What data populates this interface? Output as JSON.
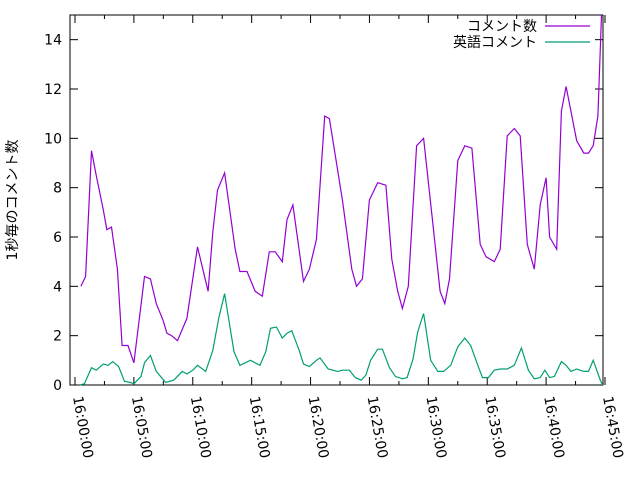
{
  "chart_data": {
    "type": "line",
    "title": "",
    "xlabel": "",
    "ylabel": "1秒毎のコメント数",
    "xlim_minutes": [
      0,
      45
    ],
    "ylim": [
      0,
      15
    ],
    "x_unit": "minutes after 16:00:00",
    "x_ticks": [
      {
        "value": 0,
        "label": "16:00:00"
      },
      {
        "value": 5,
        "label": "16:05:00"
      },
      {
        "value": 10,
        "label": "16:10:00"
      },
      {
        "value": 15,
        "label": "16:15:00"
      },
      {
        "value": 20,
        "label": "16:20:00"
      },
      {
        "value": 25,
        "label": "16:25:00"
      },
      {
        "value": 30,
        "label": "16:30:00"
      },
      {
        "value": 35,
        "label": "16:35:00"
      },
      {
        "value": 40,
        "label": "16:40:00"
      },
      {
        "value": 45,
        "label": "16:45:00"
      }
    ],
    "y_ticks": [
      "0",
      "2",
      "4",
      "6",
      "8",
      "10",
      "12",
      "14"
    ],
    "grid": false,
    "legend_position": "top-right",
    "series": [
      {
        "name": "コメント数",
        "color": "#9400d3",
        "x": [
          0.5,
          0.9,
          1.4,
          1.8,
          2.4,
          2.7,
          3.1,
          3.6,
          4.0,
          4.5,
          5.0,
          5.9,
          6.4,
          6.9,
          7.5,
          7.8,
          8.2,
          8.7,
          9.5,
          10.4,
          11.3,
          11.7,
          12.1,
          12.7,
          13.6,
          14.0,
          14.6,
          15.3,
          15.9,
          16.5,
          17.0,
          17.6,
          18.0,
          18.5,
          19.4,
          19.9,
          20.5,
          21.2,
          21.6,
          22.7,
          23.5,
          23.9,
          24.4,
          25.0,
          25.7,
          26.4,
          26.9,
          27.4,
          27.8,
          28.3,
          29.0,
          29.6,
          30.3,
          31.0,
          31.4,
          31.8,
          32.5,
          33.1,
          33.7,
          34.4,
          34.9,
          35.6,
          36.1,
          36.7,
          37.3,
          37.8,
          38.4,
          39.0,
          39.5,
          40.0,
          40.3,
          40.9,
          41.3,
          41.7,
          42.6,
          43.2,
          43.6,
          44.0,
          44.4,
          44.7
        ],
        "values": [
          4.0,
          4.4,
          9.5,
          8.5,
          7.1,
          6.3,
          6.4,
          4.7,
          1.6,
          1.6,
          0.9,
          4.4,
          4.3,
          3.3,
          2.6,
          2.1,
          2.0,
          1.8,
          2.7,
          5.6,
          3.8,
          6.2,
          7.9,
          8.6,
          5.5,
          4.6,
          4.6,
          3.8,
          3.6,
          5.4,
          5.4,
          5.0,
          6.7,
          7.3,
          4.2,
          4.7,
          5.9,
          10.9,
          10.8,
          7.5,
          4.7,
          4.0,
          4.3,
          7.5,
          8.2,
          8.1,
          5.1,
          3.8,
          3.1,
          4.0,
          9.7,
          10.0,
          6.9,
          3.8,
          3.3,
          4.3,
          9.1,
          9.7,
          9.6,
          5.7,
          5.2,
          5.0,
          5.5,
          10.1,
          10.4,
          10.1,
          5.7,
          4.7,
          7.3,
          8.4,
          6.0,
          5.5,
          11.1,
          12.1,
          9.9,
          9.4,
          9.4,
          9.7,
          10.9,
          15.0
        ]
      },
      {
        "name": "英語コメント",
        "color": "#009e73",
        "x": [
          0.4,
          0.8,
          1.4,
          1.8,
          2.4,
          2.8,
          3.2,
          3.7,
          4.2,
          4.7,
          5.0,
          5.6,
          5.9,
          6.4,
          6.9,
          7.7,
          8.4,
          9.1,
          9.5,
          10.0,
          10.4,
          11.1,
          11.7,
          12.2,
          12.7,
          13.5,
          14.0,
          14.9,
          15.7,
          16.2,
          16.6,
          17.1,
          17.6,
          18.0,
          18.4,
          19.0,
          19.4,
          19.9,
          20.5,
          20.8,
          21.5,
          22.3,
          22.7,
          23.3,
          23.8,
          24.3,
          24.7,
          25.1,
          25.7,
          26.1,
          26.7,
          27.2,
          27.8,
          28.2,
          28.7,
          29.1,
          29.6,
          30.2,
          30.8,
          31.3,
          31.9,
          32.5,
          33.1,
          33.6,
          34.2,
          34.6,
          35.1,
          35.6,
          36.1,
          36.7,
          37.3,
          37.9,
          38.5,
          39.0,
          39.5,
          39.9,
          40.3,
          40.7,
          41.3,
          41.7,
          42.1,
          42.6,
          43.2,
          43.6,
          44.0,
          44.6,
          44.8
        ],
        "values": [
          0,
          0.05,
          0.7,
          0.6,
          0.85,
          0.8,
          0.95,
          0.75,
          0.15,
          0.1,
          0.05,
          0.35,
          0.9,
          1.2,
          0.55,
          0.1,
          0.2,
          0.55,
          0.45,
          0.6,
          0.8,
          0.55,
          1.4,
          2.7,
          3.7,
          1.35,
          0.8,
          1.0,
          0.8,
          1.35,
          2.3,
          2.35,
          1.9,
          2.1,
          2.2,
          1.45,
          0.85,
          0.75,
          1.0,
          1.1,
          0.65,
          0.55,
          0.6,
          0.6,
          0.3,
          0.2,
          0.4,
          1.0,
          1.45,
          1.45,
          0.7,
          0.35,
          0.25,
          0.3,
          1.05,
          2.15,
          2.9,
          1.0,
          0.55,
          0.55,
          0.8,
          1.55,
          1.9,
          1.6,
          0.8,
          0.3,
          0.3,
          0.6,
          0.65,
          0.65,
          0.8,
          1.5,
          0.6,
          0.25,
          0.3,
          0.6,
          0.3,
          0.35,
          0.95,
          0.8,
          0.55,
          0.65,
          0.55,
          0.55,
          1.0,
          0.2,
          0
        ]
      }
    ]
  }
}
